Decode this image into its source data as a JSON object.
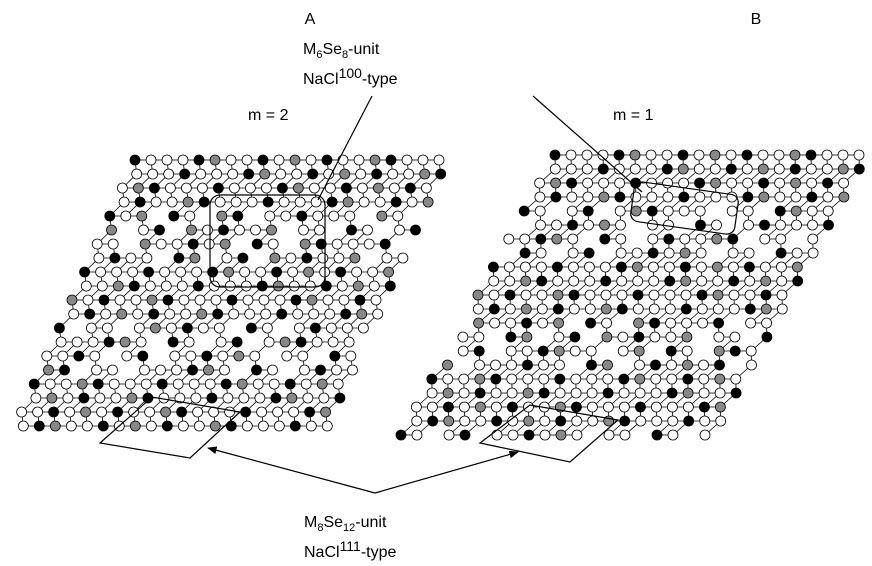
{
  "panels": [
    {
      "label": "A",
      "period": "m = 2"
    },
    {
      "label": "B",
      "period": "m = 1"
    }
  ],
  "annotations": {
    "top": {
      "unit": [
        "M",
        "6",
        "Se",
        "8",
        "-unit"
      ],
      "type": [
        "NaCl",
        "100",
        "-type"
      ]
    },
    "bottom": {
      "unit": [
        "M",
        "8",
        "Se",
        "12",
        "-unit"
      ],
      "type": [
        "NaCl",
        "111",
        "-type"
      ]
    }
  }
}
